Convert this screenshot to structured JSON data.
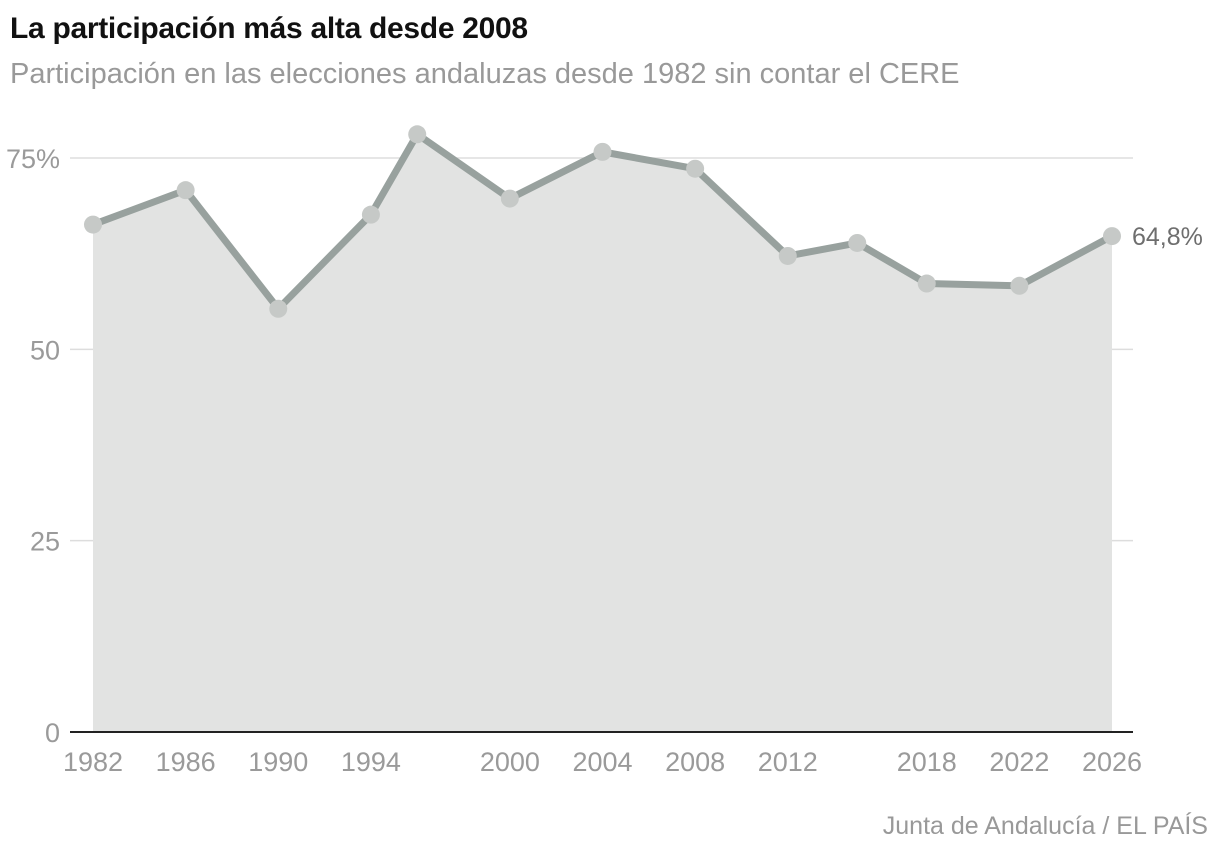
{
  "chart_data": {
    "type": "area",
    "title": "La participación más alta desde 2008",
    "subtitle": "Participación en las elecciones andaluzas desde 1982 sin contar el CERE",
    "source": "Junta de Andalucía / EL PAÍS",
    "x": [
      1982,
      1986,
      1990,
      1994,
      1996,
      2000,
      2004,
      2008,
      2012,
      2015,
      2018,
      2022,
      2026
    ],
    "values": [
      66.3,
      70.8,
      55.3,
      67.6,
      78.1,
      69.7,
      75.8,
      73.6,
      62.2,
      63.9,
      58.6,
      58.3,
      64.8
    ],
    "xlim": [
      1982,
      2026
    ],
    "ylim": [
      0,
      75
    ],
    "yticks": [
      0,
      25,
      50,
      75
    ],
    "ytick_labels": [
      "0",
      "25",
      "50",
      "75%"
    ],
    "xticks": [
      1982,
      1986,
      1990,
      1994,
      2000,
      2004,
      2008,
      2012,
      2018,
      2022,
      2026
    ],
    "xtick_labels": [
      "1982",
      "1986",
      "1990",
      "1994",
      "2000",
      "2004",
      "2008",
      "2012",
      "2018",
      "2022",
      "2026"
    ],
    "end_label": "64,8%",
    "grid": true,
    "colors": {
      "line": "#98a19e",
      "area": "#e2e3e2",
      "marker": "#c6c9c7",
      "grid": "#dddddd"
    }
  }
}
